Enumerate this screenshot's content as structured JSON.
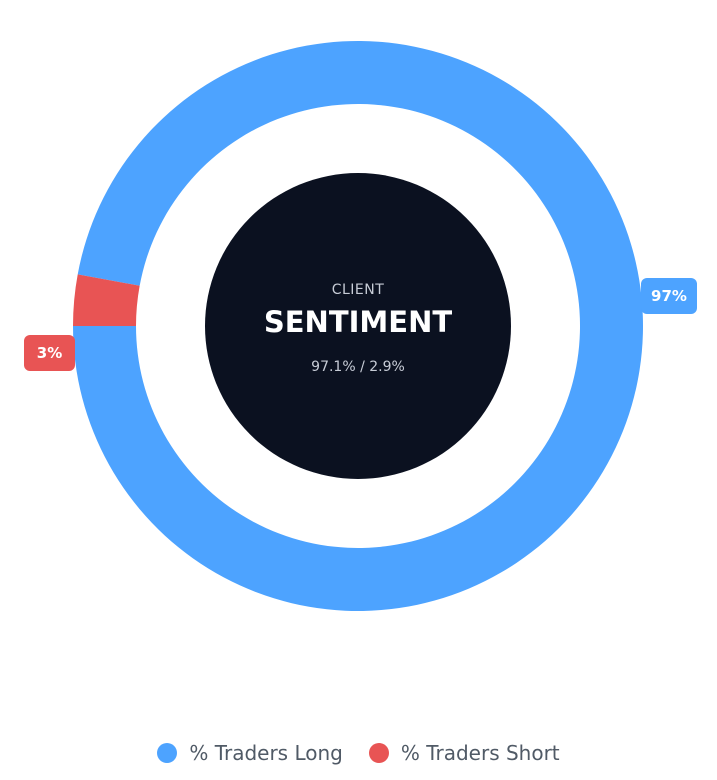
{
  "chart_data": {
    "type": "pie",
    "variant": "donut",
    "title": "",
    "categories": [
      "% Traders Long",
      "% Traders Short"
    ],
    "values": [
      97.1,
      2.9
    ],
    "data_labels": [
      "97%",
      "3%"
    ],
    "colors": [
      "#4da3ff",
      "#e85454"
    ],
    "legend_placement": "bottom-center"
  },
  "center": {
    "line1": "CLIENT",
    "line2": "SENTIMENT",
    "line3": "97.1% / 2.9%",
    "background": "#0b1120"
  },
  "legend": {
    "items": [
      {
        "label": "% Traders Long",
        "color": "#4da3ff"
      },
      {
        "label": "% Traders Short",
        "color": "#e85454"
      }
    ]
  }
}
